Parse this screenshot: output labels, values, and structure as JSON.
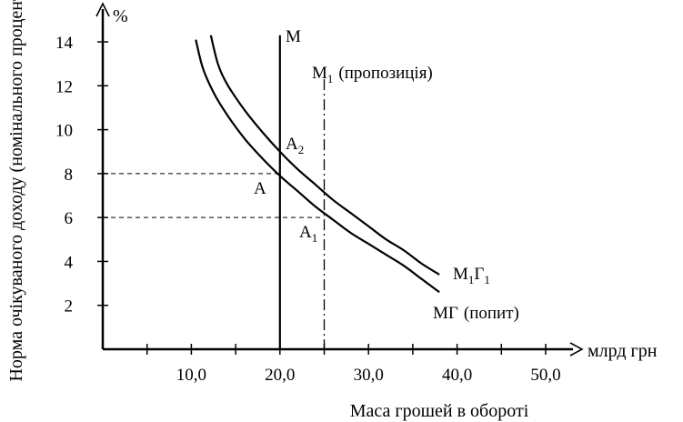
{
  "chart_data": {
    "type": "line",
    "title": "",
    "xlabel": "Маса грошей в обороті",
    "x_unit": "млрд грн",
    "ylabel": "Норма очікуваного доходу (номінального процента)",
    "y_unit": "%",
    "xlim": [
      0,
      52
    ],
    "ylim": [
      0,
      15
    ],
    "x_ticks": [
      10,
      20,
      30,
      40,
      50
    ],
    "x_tick_labels": [
      "10,0",
      "20,0",
      "30,0",
      "40,0",
      "50,0"
    ],
    "y_ticks": [
      2,
      4,
      6,
      8,
      10,
      12,
      14
    ],
    "y_tick_labels": [
      "2",
      "4",
      "6",
      "8",
      "10",
      "12",
      "14"
    ],
    "grid": false,
    "series": [
      {
        "name": "МГ (попит)",
        "label_main": "МГ",
        "label_note": "(попит)",
        "style": "solid",
        "x": [
          10.5,
          11.3,
          12.5,
          14,
          16,
          18,
          20,
          22,
          24,
          26,
          28,
          30,
          32,
          34,
          36,
          38
        ],
        "y": [
          14.1,
          12.8,
          11.7,
          10.7,
          9.6,
          8.7,
          7.9,
          7.2,
          6.5,
          5.9,
          5.3,
          4.8,
          4.3,
          3.8,
          3.2,
          2.6
        ]
      },
      {
        "name": "М1Г1",
        "label_main": "М",
        "label_sub1": "1",
        "label_mid": "Г",
        "label_sub2": "1",
        "style": "solid",
        "x": [
          12.2,
          13,
          14,
          16,
          18,
          20,
          22,
          24,
          26,
          28,
          30,
          32,
          34,
          36,
          38
        ],
        "y": [
          14.3,
          13.0,
          12.1,
          10.9,
          9.9,
          9.0,
          8.2,
          7.5,
          6.8,
          6.2,
          5.6,
          5.0,
          4.5,
          3.9,
          3.4
        ]
      },
      {
        "name": "М",
        "label_main": "М",
        "style": "solid",
        "x": [
          20,
          20
        ],
        "y": [
          14.3,
          0
        ]
      },
      {
        "name": "М1 (пропозиція)",
        "label_main": "М",
        "label_sub": "1",
        "label_note": "(пропозиція)",
        "style": "dash-dot",
        "x": [
          25,
          25
        ],
        "y": [
          12.3,
          0
        ]
      }
    ],
    "points": [
      {
        "label": "A",
        "x": 20,
        "y": 8
      },
      {
        "label": "A",
        "sub": "2",
        "x": 20,
        "y": 9
      },
      {
        "label": "A",
        "sub": "1",
        "x": 25,
        "y": 6
      }
    ],
    "reference_lines": [
      {
        "from_y": 8,
        "to_x": 20,
        "style": "dashed"
      },
      {
        "from_y": 6,
        "to_x": 25,
        "style": "dashed"
      }
    ]
  }
}
